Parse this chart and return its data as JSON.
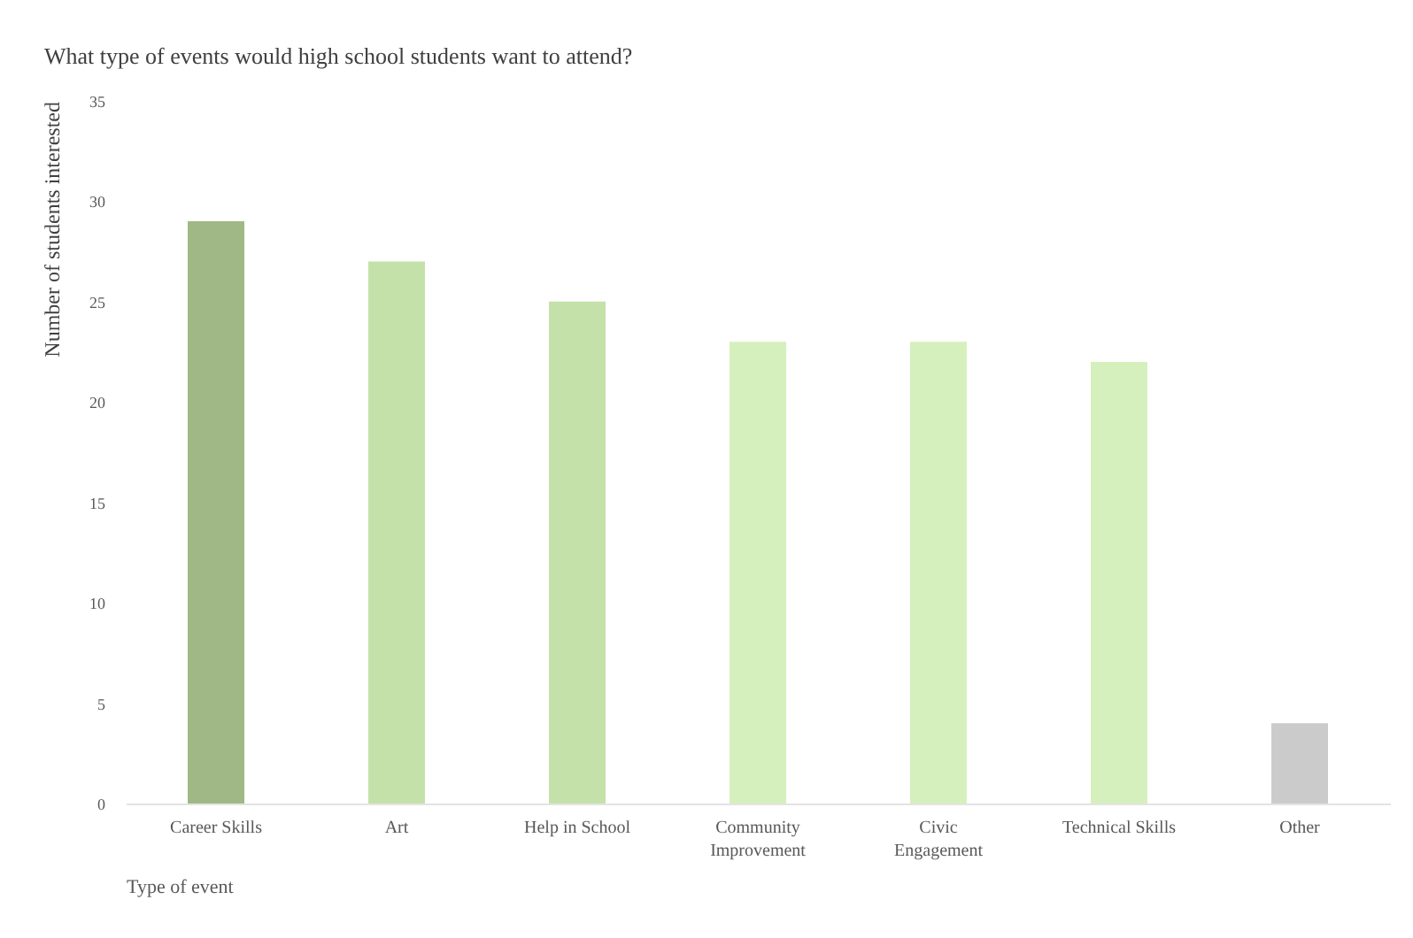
{
  "chart_data": {
    "type": "bar",
    "title": "What type of events would high school students want to attend?",
    "xlabel": "Type of event",
    "ylabel": "Number of students interested",
    "categories": [
      "Career Skills",
      "Art",
      "Help in School",
      "Community\nImprovement",
      "Civic\nEngagement",
      "Technical Skills",
      "Other"
    ],
    "values": [
      29,
      27,
      25,
      23,
      23,
      22,
      4
    ],
    "colors": [
      "#a0b886",
      "#c4e1aa",
      "#c4e1aa",
      "#d5f0bd",
      "#d5f0bd",
      "#d5f0bd",
      "#cbcbcb"
    ],
    "ylim": [
      0,
      35
    ],
    "yticks": [
      0,
      5,
      10,
      15,
      20,
      25,
      30,
      35
    ],
    "grid": false
  }
}
